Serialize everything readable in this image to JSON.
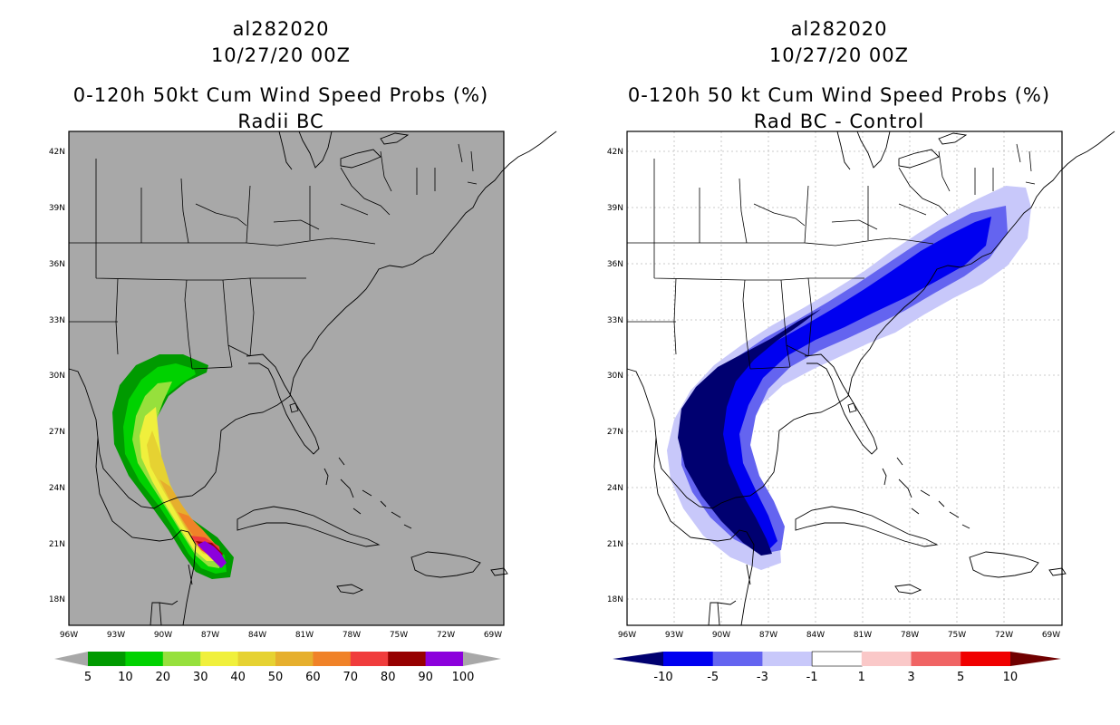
{
  "left_panel": {
    "storm_id": "al282020",
    "init_time": "10/27/20 00Z",
    "product": "0-120h 50kt Cum Wind Speed Probs (%)",
    "subtitle": "Radii BC",
    "background_color": "#a8a8a8",
    "colorbar": {
      "labels": [
        "5",
        "10",
        "20",
        "30",
        "40",
        "50",
        "60",
        "70",
        "80",
        "90",
        "100"
      ],
      "colors": [
        "#009a00",
        "#00d200",
        "#96e03c",
        "#f0f03c",
        "#e6d232",
        "#e6af2d",
        "#f08228",
        "#f03c3c",
        "#960000",
        "#8c00dc"
      ]
    }
  },
  "right_panel": {
    "storm_id": "al282020",
    "init_time": "10/27/20 00Z",
    "product": "0-120h 50 kt Cum Wind Speed Probs (%)",
    "subtitle": "Rad BC - Control",
    "background_color": "#ffffff",
    "colorbar": {
      "labels": [
        "-10",
        "-5",
        "-3",
        "-1",
        "1",
        "3",
        "5",
        "10"
      ],
      "colors": [
        "#000070",
        "#0000f0",
        "#6464f0",
        "#c8c8fa",
        "#ffffff",
        "#fac8c8",
        "#f06464",
        "#f00000",
        "#700000"
      ]
    }
  },
  "map": {
    "lat_labels": [
      "42N",
      "39N",
      "36N",
      "33N",
      "30N",
      "27N",
      "24N",
      "21N",
      "18N"
    ],
    "lon_labels": [
      "96W",
      "93W",
      "90W",
      "87W",
      "84W",
      "81W",
      "78W",
      "75W",
      "72W",
      "69W"
    ]
  }
}
